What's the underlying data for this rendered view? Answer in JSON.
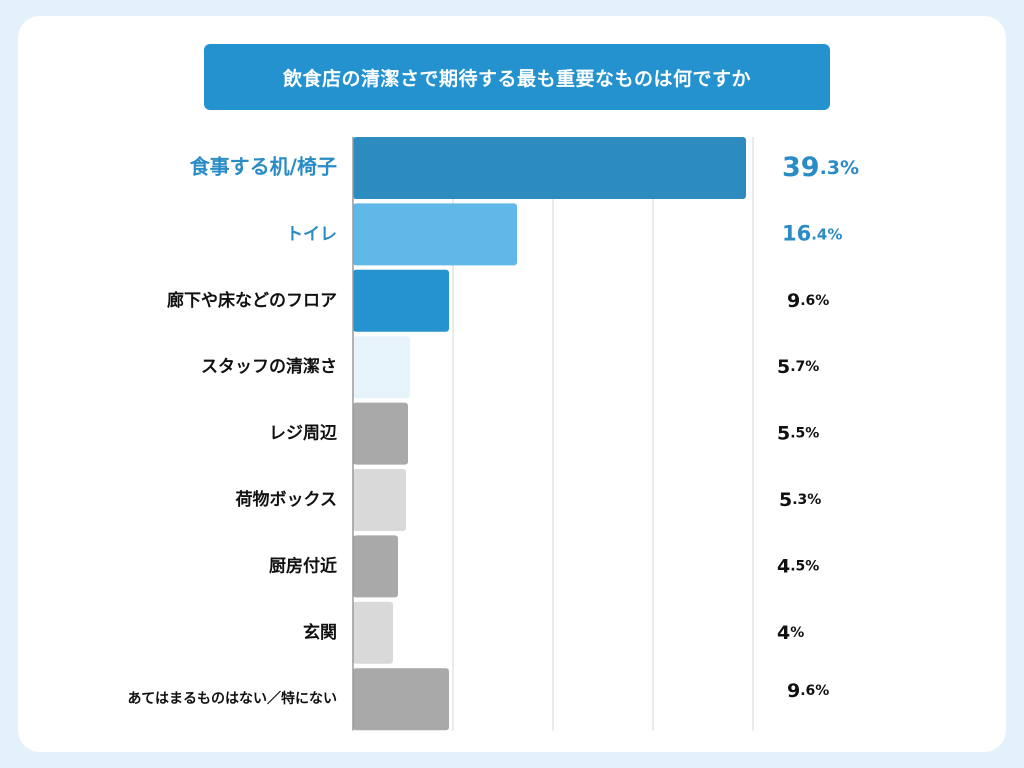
{
  "chart_data": {
    "type": "bar",
    "orientation": "horizontal",
    "title": "飲食店の清潔さで期待する最も重要なものは何ですか",
    "categories": [
      "食事する机/椅子",
      "トイレ",
      "廊下や床などのフロア",
      "スタッフの清潔さ",
      "レジ周辺",
      "荷物ボックス",
      "厨房付近",
      "玄関",
      "あてはまるものはない／特にない"
    ],
    "values": [
      39.3,
      16.4,
      9.6,
      5.7,
      5.5,
      5.3,
      4.5,
      4,
      9.6
    ],
    "value_labels": [
      "39.3%",
      "16.4%",
      "9.6%",
      "5.7%",
      "5.5%",
      "5.3%",
      "4.5%",
      "4%",
      "9.6%"
    ],
    "xlim": [
      0,
      40
    ],
    "grid": true,
    "xlabel": "",
    "ylabel": "",
    "colors": {
      "bars": [
        "#2c8bbf",
        "#5fb8e8",
        "#2593cf",
        "#e6f3fb",
        "#a9a9a9",
        "#d9d9d9",
        "#a9a9a9",
        "#d9d9d9",
        "#a9a9a9"
      ],
      "highlight_text": "#2a8cc4",
      "default_text": "#111111",
      "grid": "#d6d6d6"
    }
  }
}
